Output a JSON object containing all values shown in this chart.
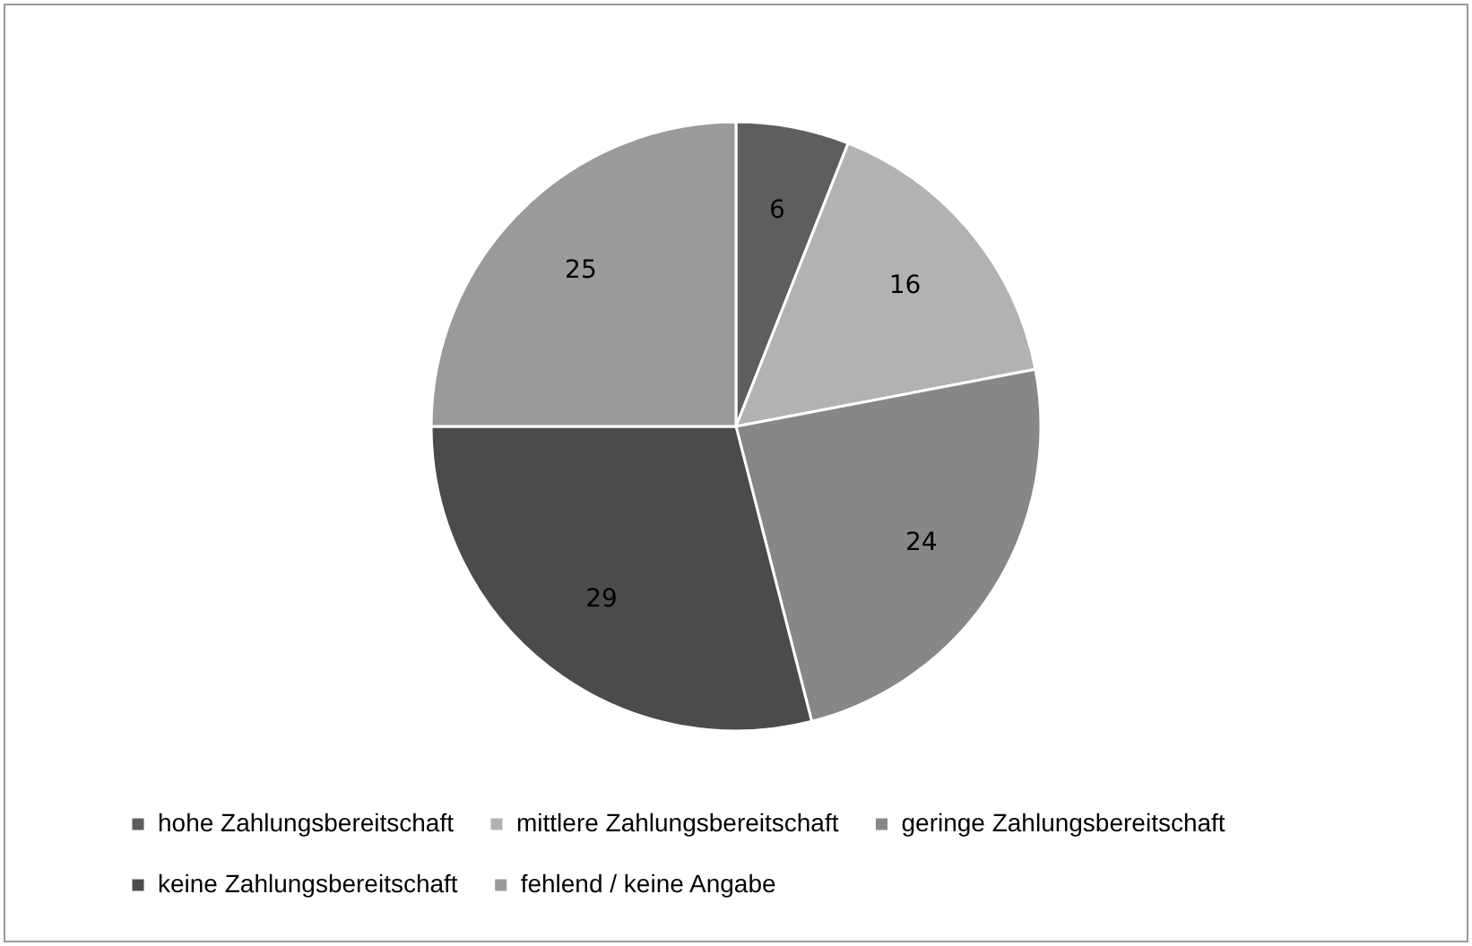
{
  "chart_data": {
    "type": "pie",
    "categories": [
      "hohe Zahlungsbereitschaft",
      "mittlere Zahlungsbereitschaft",
      "geringe Zahlungsbereitschaft",
      "keine Zahlungsbereitschaft",
      "fehlend / keine Angabe"
    ],
    "values": [
      6,
      16,
      24,
      29,
      25
    ],
    "colors": [
      "#5e5e5e",
      "#b2b2b2",
      "#878787",
      "#4b4b4b",
      "#9a9a9a"
    ],
    "data_labels": true,
    "legend": "bottom"
  }
}
